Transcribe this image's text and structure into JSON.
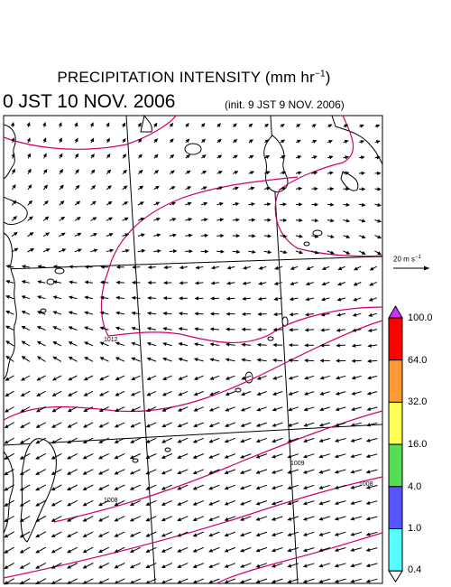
{
  "header": {
    "title_main": "PRECIPITATION INTENSITY (mm hr",
    "title_exp": "−1",
    "title_close": ")",
    "valid_time": "0 JST 10 NOV. 2006",
    "init_time": "(init. 9 JST 9 NOV. 2006)"
  },
  "vector_reference": {
    "label": "20 m s",
    "exponent": "−1"
  },
  "colorbar": {
    "labels": [
      "100.0",
      "64.0",
      "32.0",
      "16.0",
      "4.0",
      "1.0",
      "0.4"
    ],
    "colors": [
      "#ff0000",
      "#ff9933",
      "#ffff55",
      "#55dd55",
      "#5555ff",
      "#55ffff"
    ],
    "over_color": "#cc33ff",
    "under_color": "#ffffff"
  },
  "isobars": {
    "color": "#d0006f",
    "labels": [
      "1012",
      "1008",
      "1009",
      "1008"
    ]
  }
}
